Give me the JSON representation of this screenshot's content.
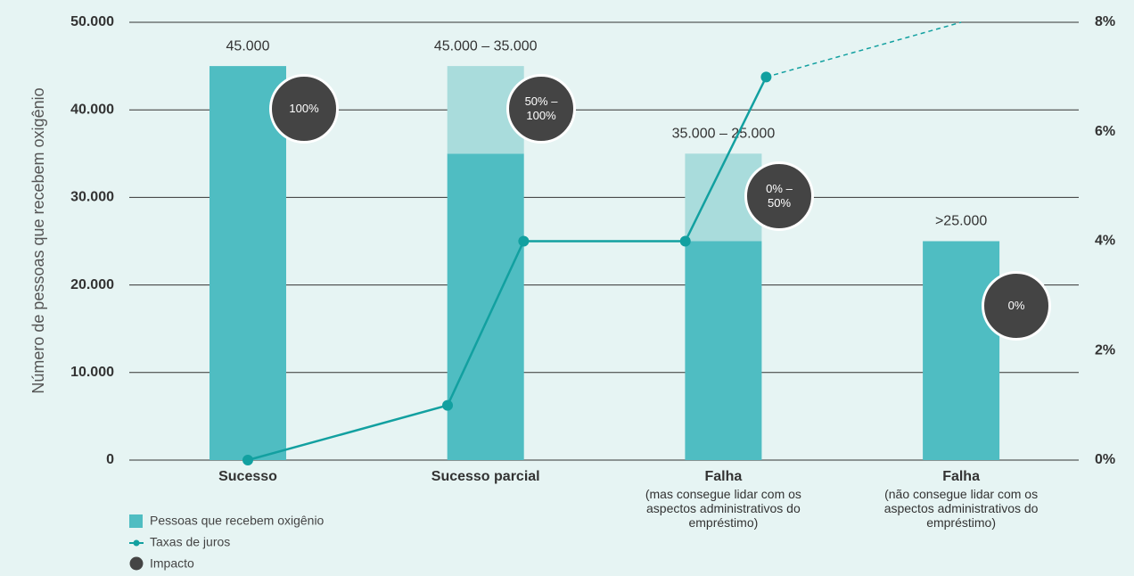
{
  "chart_data": {
    "type": "bar",
    "y_label": "Número de pessoas que recebem oxigênio",
    "categories": [
      "Sucesso",
      "Sucesso parcial",
      "Falha",
      "Falha"
    ],
    "category_notes": [
      null,
      null,
      "(mas consegue lidar com os aspectos administrativos do empréstimo)",
      "(não consegue lidar com os aspectos administrativos do empréstimo)"
    ],
    "top_labels": [
      "45.000",
      "45.000 – 35.000",
      "35.000 – 25.000",
      ">25.000"
    ],
    "series": [
      {
        "name": "Pessoas que recebem oxigênio",
        "type": "bar",
        "color": "#4fbdc2",
        "values": [
          45000,
          35000,
          25000,
          25000
        ]
      },
      {
        "type": "bar",
        "color": "#a9dcdc",
        "values": [
          null,
          10000,
          10000,
          null
        ]
      },
      {
        "name": "Taxas de juros",
        "type": "line",
        "axis": "y2",
        "color": "#12a0a0",
        "x": [
          0,
          0.84,
          1.16,
          1.84,
          2.18
        ],
        "values": [
          0,
          1,
          4,
          4,
          7
        ]
      },
      {
        "type": "line",
        "axis": "y2",
        "dashed": true,
        "color": "#12a0a0",
        "x": [
          2.18,
          3.0
        ],
        "values": [
          7,
          8
        ]
      }
    ],
    "impact": {
      "name": "Impacto",
      "color": "#444444",
      "labels": [
        "100%",
        "50% – 100%",
        "0% – 50%",
        "0%"
      ]
    },
    "ylim": [
      0,
      50000
    ],
    "yticks": [
      0,
      {
        "value": 10000,
        "label": "10.000"
      },
      {
        "value": 20000,
        "label": "20.000"
      },
      {
        "value": 30000,
        "label": "30.000"
      },
      {
        "value": 40000,
        "label": "40.000"
      },
      {
        "value": 50000,
        "label": "50.000"
      }
    ],
    "y2lim": [
      0,
      8
    ],
    "y2ticks": [
      {
        "value": 0,
        "label": "0%"
      },
      {
        "value": 2,
        "label": "2%"
      },
      {
        "value": 4,
        "label": "4%"
      },
      {
        "value": 6,
        "label": "6%"
      },
      {
        "value": 8,
        "label": "8%"
      }
    ],
    "grid": true
  }
}
